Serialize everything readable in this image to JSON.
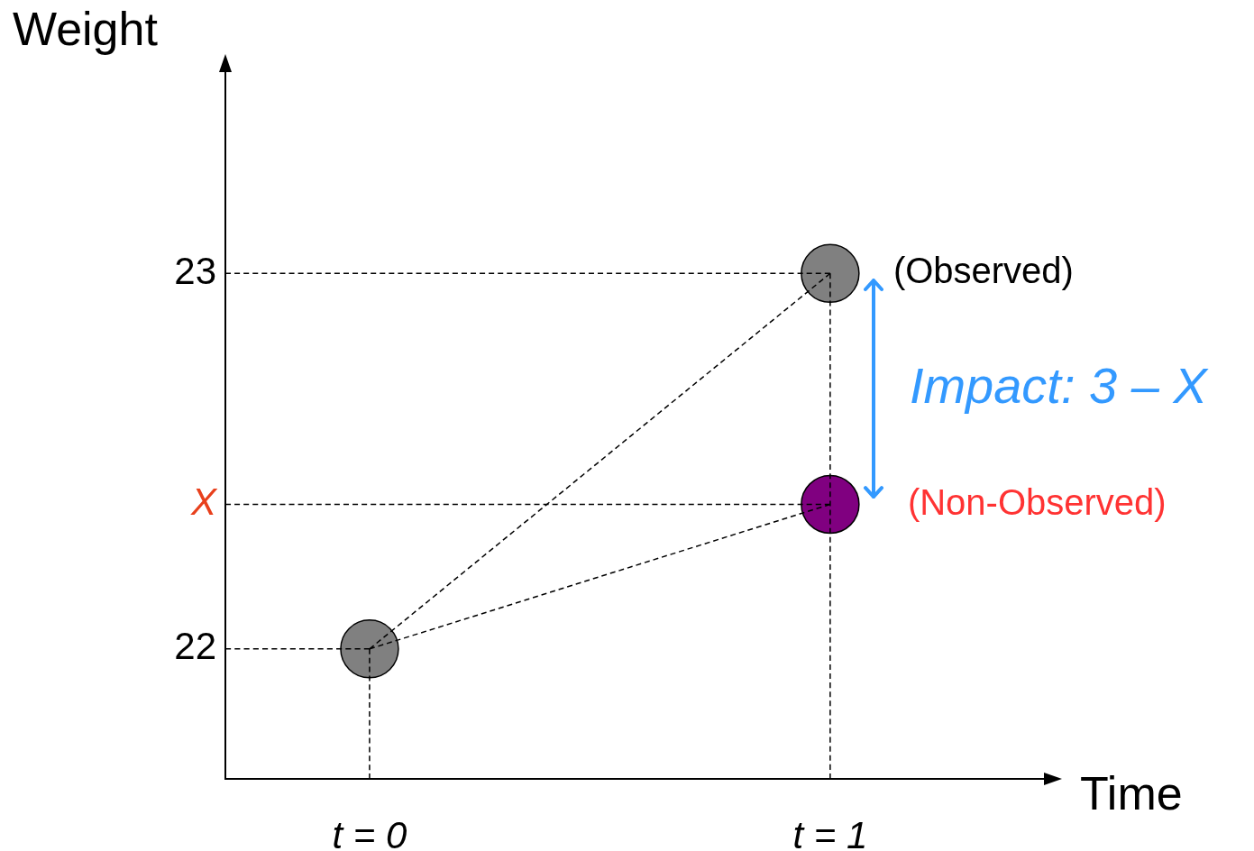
{
  "chart_data": {
    "type": "scatter",
    "xlabel": "Time",
    "ylabel": "Weight",
    "xlim": [
      -0.313,
      1.468
    ],
    "xticks": [
      {
        "value": 0,
        "label": "t = 0"
      },
      {
        "value": 1,
        "label": "t = 1"
      }
    ],
    "ylim": [
      21.654,
      23.56
    ],
    "yticks": [
      22,
      {
        "value": 22.385,
        "label": "X"
      },
      23
    ],
    "legend": false,
    "series": [
      {
        "type": "line",
        "x": [
          0,
          1
        ],
        "values": [
          22,
          23
        ],
        "color": "#000000",
        "line_style": "dashed",
        "marker": "none"
      },
      {
        "type": "line",
        "x": [
          0,
          1
        ],
        "values": [
          22,
          22.385
        ],
        "color": "#000000",
        "line_style": "dashed",
        "marker": "none"
      },
      {
        "type": "line",
        "x": [
          -0.313,
          1
        ],
        "values": [
          23,
          23
        ],
        "color": "#000000",
        "line_style": "dashed",
        "marker": "none"
      },
      {
        "type": "line",
        "x": [
          -0.313,
          1
        ],
        "values": [
          22.385,
          22.385
        ],
        "color": "#000000",
        "line_style": "dashed",
        "marker": "none"
      },
      {
        "type": "line",
        "x": [
          -0.313,
          0
        ],
        "values": [
          22,
          22
        ],
        "color": "#000000",
        "line_style": "dashed",
        "marker": "none"
      },
      {
        "type": "line",
        "x": [
          0,
          0
        ],
        "values": [
          21.654,
          22
        ],
        "color": "#000000",
        "line_style": "dashed",
        "marker": "none"
      },
      {
        "type": "line",
        "x": [
          1,
          1
        ],
        "values": [
          21.654,
          23
        ],
        "color": "#000000",
        "line_style": "dashed",
        "marker": "none"
      },
      {
        "type": "scatter",
        "x": [
          0,
          1,
          1
        ],
        "values": [
          22,
          23,
          22.385
        ],
        "colors": [
          "#808080",
          "#808080",
          "#800080"
        ],
        "marker": "circle"
      }
    ],
    "annotations": [
      {
        "text": "(Observed)",
        "x": 1,
        "y": 23
      },
      {
        "text": "(Non-Observed)",
        "x": 1,
        "y": 22.385
      },
      "Impact: 3 – X"
    ]
  }
}
